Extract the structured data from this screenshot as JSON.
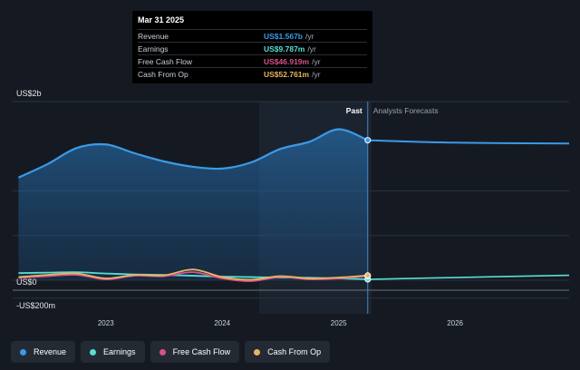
{
  "chart_data": {
    "type": "line",
    "currency": "US$",
    "y_labels": {
      "top": "US$2b",
      "zero": "US$0",
      "bottom": "-US$200m"
    },
    "ylim": [
      -200,
      2000
    ],
    "xlim": [
      2022.2,
      2026.98
    ],
    "x_ticks": [
      {
        "value": 2023,
        "label": "2023"
      },
      {
        "value": 2024,
        "label": "2024"
      },
      {
        "value": 2025,
        "label": "2025"
      },
      {
        "value": 2026,
        "label": "2026"
      }
    ],
    "divider_x": 2025.25,
    "past_label": "Past",
    "forecast_label": "Analysts Forecasts",
    "series": [
      {
        "name": "Revenue",
        "color": "#3b9ae8",
        "fill": true,
        "points": [
          [
            2022.25,
            1150
          ],
          [
            2022.5,
            1300
          ],
          [
            2022.75,
            1480
          ],
          [
            2023.0,
            1520
          ],
          [
            2023.25,
            1420
          ],
          [
            2023.5,
            1330
          ],
          [
            2023.75,
            1270
          ],
          [
            2024.0,
            1250
          ],
          [
            2024.25,
            1320
          ],
          [
            2024.5,
            1470
          ],
          [
            2024.75,
            1550
          ],
          [
            2025.0,
            1690
          ],
          [
            2025.25,
            1567
          ]
        ],
        "forecast": [
          [
            2025.25,
            1567
          ],
          [
            2026.0,
            1540
          ],
          [
            2026.98,
            1530
          ]
        ]
      },
      {
        "name": "Earnings",
        "color": "#55e0d4",
        "fill": false,
        "points": [
          [
            2022.25,
            80
          ],
          [
            2022.5,
            85
          ],
          [
            2022.75,
            90
          ],
          [
            2023.0,
            75
          ],
          [
            2023.25,
            65
          ],
          [
            2023.5,
            60
          ],
          [
            2023.75,
            50
          ],
          [
            2024.0,
            40
          ],
          [
            2024.25,
            35
          ],
          [
            2024.5,
            30
          ],
          [
            2024.75,
            28
          ],
          [
            2025.0,
            20
          ],
          [
            2025.25,
            9.787
          ]
        ],
        "forecast": [
          [
            2025.25,
            9.787
          ],
          [
            2026.0,
            30
          ],
          [
            2026.98,
            55
          ]
        ]
      },
      {
        "name": "Free Cash Flow",
        "color": "#d9508a",
        "fill": false,
        "points": [
          [
            2022.25,
            25
          ],
          [
            2022.5,
            45
          ],
          [
            2022.75,
            60
          ],
          [
            2023.0,
            10
          ],
          [
            2023.25,
            50
          ],
          [
            2023.5,
            45
          ],
          [
            2023.75,
            90
          ],
          [
            2024.0,
            20
          ],
          [
            2024.25,
            -10
          ],
          [
            2024.5,
            35
          ],
          [
            2024.75,
            10
          ],
          [
            2025.0,
            20
          ],
          [
            2025.25,
            46.919
          ]
        ],
        "forecast": []
      },
      {
        "name": "Cash From Op",
        "color": "#e8b463",
        "fill": false,
        "points": [
          [
            2022.25,
            35
          ],
          [
            2022.5,
            60
          ],
          [
            2022.75,
            75
          ],
          [
            2023.0,
            20
          ],
          [
            2023.25,
            60
          ],
          [
            2023.5,
            55
          ],
          [
            2023.75,
            120
          ],
          [
            2024.0,
            35
          ],
          [
            2024.25,
            5
          ],
          [
            2024.5,
            45
          ],
          [
            2024.75,
            20
          ],
          [
            2025.0,
            30
          ],
          [
            2025.25,
            52.761
          ]
        ],
        "forecast": []
      }
    ]
  },
  "tooltip": {
    "title": "Mar 31 2025",
    "rows": [
      {
        "label": "Revenue",
        "value": "US$1.567b",
        "unit": "/yr",
        "color": "#3b9ae8"
      },
      {
        "label": "Earnings",
        "value": "US$9.787m",
        "unit": "/yr",
        "color": "#55e0d4"
      },
      {
        "label": "Free Cash Flow",
        "value": "US$46.919m",
        "unit": "/yr",
        "color": "#d9508a"
      },
      {
        "label": "Cash From Op",
        "value": "US$52.761m",
        "unit": "/yr",
        "color": "#e8b463"
      }
    ]
  },
  "legend": [
    {
      "label": "Revenue",
      "color": "#3b9ae8"
    },
    {
      "label": "Earnings",
      "color": "#55e0d4"
    },
    {
      "label": "Free Cash Flow",
      "color": "#d9508a"
    },
    {
      "label": "Cash From Op",
      "color": "#e8b463"
    }
  ]
}
